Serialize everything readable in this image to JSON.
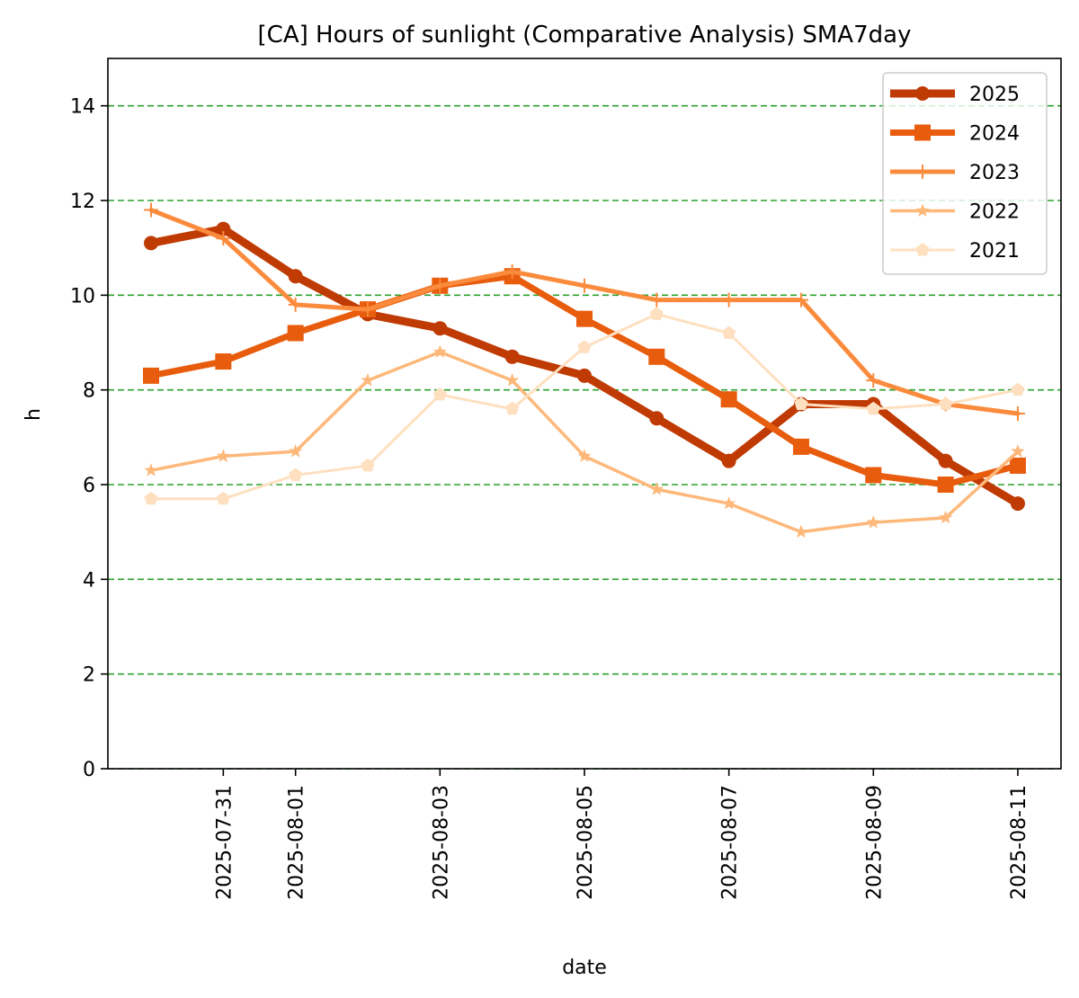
{
  "chart_data": {
    "type": "line",
    "title": "[CA] Hours of sunlight (Comparative Analysis) SMA7day",
    "xlabel": "date",
    "ylabel": "h",
    "ylim": [
      0,
      15
    ],
    "yticks": [
      0,
      2,
      4,
      6,
      8,
      10,
      12,
      14
    ],
    "x": [
      "2025-07-30",
      "2025-07-31",
      "2025-08-01",
      "2025-08-02",
      "2025-08-03",
      "2025-08-04",
      "2025-08-05",
      "2025-08-06",
      "2025-08-07",
      "2025-08-08",
      "2025-08-09",
      "2025-08-10",
      "2025-08-11"
    ],
    "xticks": [
      "2025-07-31",
      "2025-08-01",
      "2025-08-03",
      "2025-08-05",
      "2025-08-07",
      "2025-08-09",
      "2025-08-11"
    ],
    "grid": {
      "axis": "y",
      "style": "dashed",
      "color": "#2ca02c"
    },
    "legend_position": "top-right",
    "series": [
      {
        "name": "2025",
        "color": "#bf3b03",
        "marker": "circle",
        "values": [
          11.1,
          11.4,
          10.4,
          9.6,
          9.3,
          8.7,
          8.3,
          7.4,
          6.5,
          7.7,
          7.7,
          6.5,
          5.6
        ]
      },
      {
        "name": "2024",
        "color": "#e85c0d",
        "marker": "square",
        "values": [
          8.3,
          8.6,
          9.2,
          9.7,
          10.2,
          10.4,
          9.5,
          8.7,
          7.8,
          6.8,
          6.2,
          6.0,
          6.4
        ]
      },
      {
        "name": "2023",
        "color": "#fb8b3c",
        "marker": "plus",
        "values": [
          11.8,
          11.2,
          9.8,
          9.7,
          10.2,
          10.5,
          10.2,
          9.9,
          9.9,
          9.9,
          8.2,
          7.7,
          7.5
        ]
      },
      {
        "name": "2022",
        "color": "#fdb87a",
        "marker": "star",
        "values": [
          6.3,
          6.6,
          6.7,
          8.2,
          8.8,
          8.2,
          6.6,
          5.9,
          5.6,
          5.0,
          5.2,
          5.3,
          6.7
        ]
      },
      {
        "name": "2021",
        "color": "#fee0c0",
        "marker": "pentagon",
        "values": [
          5.7,
          5.7,
          6.2,
          6.4,
          7.9,
          7.6,
          8.9,
          9.6,
          9.2,
          7.7,
          7.6,
          7.7,
          8.0
        ]
      }
    ]
  }
}
